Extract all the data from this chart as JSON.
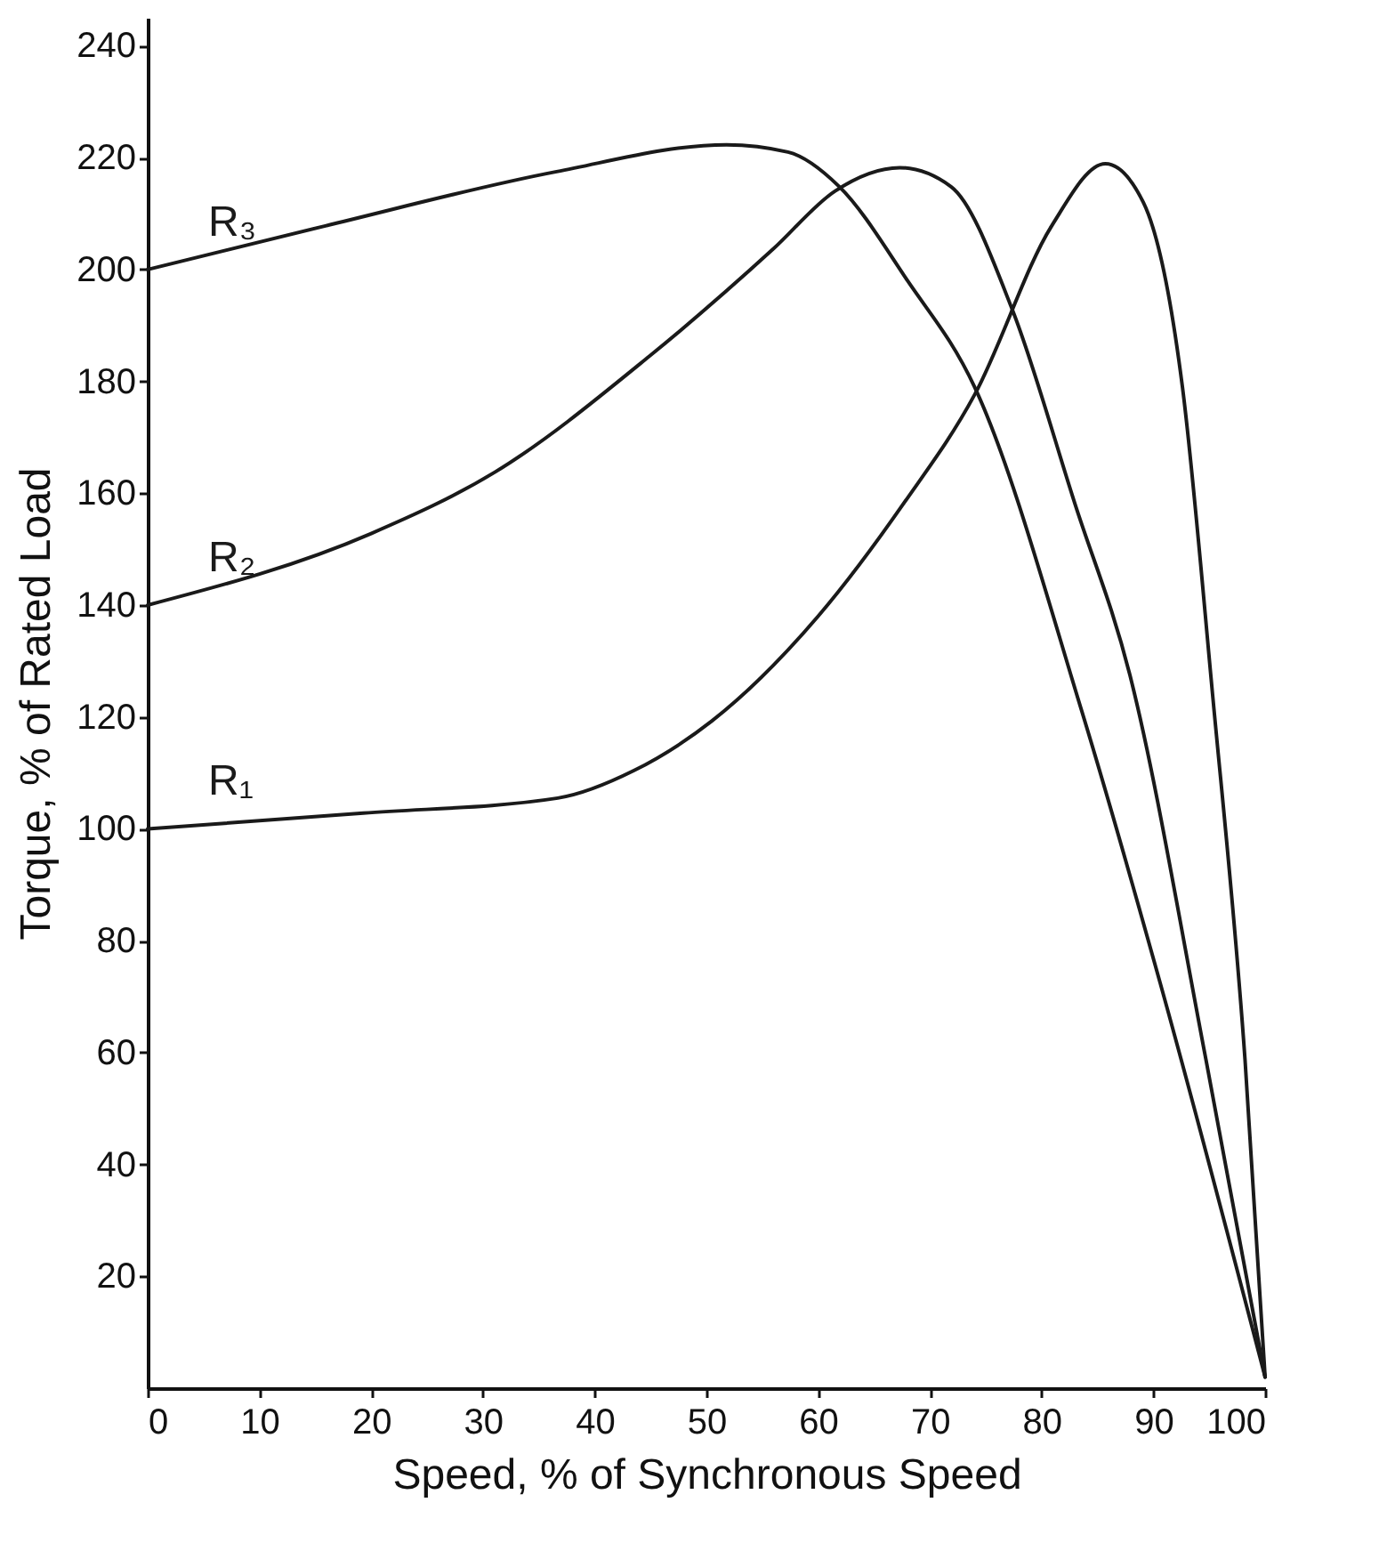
{
  "chart_data": {
    "type": "line",
    "xlabel": "Speed, % of Synchronous Speed",
    "ylabel": "Torque, % of Rated Load",
    "xlim": [
      0,
      100
    ],
    "ylim": [
      0,
      245
    ],
    "xticks": [
      0,
      10,
      20,
      30,
      40,
      50,
      60,
      70,
      80,
      90,
      100
    ],
    "yticks": [
      20,
      40,
      60,
      80,
      100,
      120,
      140,
      160,
      180,
      200,
      220,
      240
    ],
    "grid": false,
    "legend": false,
    "marker": "none",
    "line_style": "solid",
    "series": [
      {
        "name": "R₁",
        "color": "#1a1a1a",
        "x": [
          0,
          19.3,
          36.7,
          43.5,
          50.5,
          60,
          67.7,
          74,
          80.9,
          85.7,
          89.1,
          92.6,
          95.3,
          98.2,
          100
        ],
        "values": [
          100,
          102.8,
          105.5,
          110.4,
          119.3,
          138,
          158.3,
          177.6,
          207.8,
          218.9,
          212,
          179,
          124,
          58.8,
          2
        ]
      },
      {
        "name": "R₂",
        "color": "#1a1a1a",
        "x": [
          0,
          20,
          31.1,
          44.9,
          56,
          61.5,
          67.3,
          71.9,
          77.4,
          83,
          87.9,
          94.7,
          100
        ],
        "values": [
          140,
          152.8,
          163.8,
          184.5,
          203.7,
          214,
          218.2,
          214.8,
          192.7,
          158,
          127.5,
          58.8,
          2
        ]
      },
      {
        "name": "R₃",
        "color": "#1a1a1a",
        "x": [
          0,
          15.9,
          36.6,
          51.8,
          57.3,
          61.9,
          68,
          74,
          83.6,
          90.6,
          100
        ],
        "values": [
          200,
          207.8,
          217.5,
          222.3,
          221,
          214.8,
          198,
          179,
          121,
          72.5,
          2
        ]
      }
    ]
  }
}
